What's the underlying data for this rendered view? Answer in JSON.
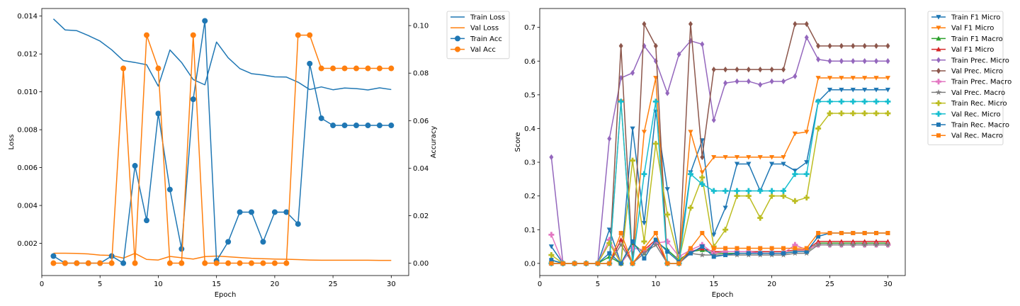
{
  "chart_data": [
    {
      "type": "line",
      "xlabel": "Epoch",
      "ylabel": "Loss",
      "y2label": "Accuracy",
      "xlim": [
        0,
        31.5
      ],
      "ylim": [
        0.0003,
        0.0144
      ],
      "y2lim": [
        -0.0052,
        0.1072
      ],
      "xticks": [
        0,
        5,
        10,
        15,
        20,
        25,
        30
      ],
      "yticks": [
        0.002,
        0.004,
        0.006,
        0.008,
        0.01,
        0.012,
        0.014
      ],
      "y2ticks": [
        0.0,
        0.02,
        0.04,
        0.06,
        0.08,
        0.1
      ],
      "ytick_labels": [
        "0.002",
        "0.004",
        "0.006",
        "0.008",
        "0.010",
        "0.012",
        "0.014"
      ],
      "y2tick_labels": [
        "0.00",
        "0.02",
        "0.04",
        "0.06",
        "0.08",
        "0.10"
      ],
      "x": [
        1,
        2,
        3,
        4,
        5,
        6,
        7,
        8,
        9,
        10,
        11,
        12,
        13,
        14,
        15,
        16,
        17,
        18,
        19,
        20,
        21,
        22,
        23,
        24,
        25,
        26,
        27,
        28,
        29,
        30
      ],
      "series": [
        {
          "name": "Train Loss",
          "axis": "left",
          "color": "#1f77b4",
          "marker": "none",
          "values": [
            0.01385,
            0.01327,
            0.01323,
            0.01297,
            0.01268,
            0.01222,
            0.01165,
            0.01155,
            0.01143,
            0.0103,
            0.01221,
            0.01155,
            0.01065,
            0.01037,
            0.01263,
            0.0118,
            0.01123,
            0.01096,
            0.01089,
            0.01079,
            0.01078,
            0.01051,
            0.01012,
            0.01026,
            0.01011,
            0.0102,
            0.01017,
            0.0101,
            0.01021,
            0.01012
          ]
        },
        {
          "name": "Val Loss",
          "axis": "left",
          "color": "#ff7f0e",
          "marker": "none",
          "values": [
            0.00148,
            0.00148,
            0.00147,
            0.00144,
            0.00138,
            0.00136,
            0.00122,
            0.00147,
            0.00115,
            0.00112,
            0.00131,
            0.00124,
            0.00117,
            0.0013,
            0.00133,
            0.00129,
            0.00125,
            0.00121,
            0.00119,
            0.00117,
            0.00116,
            0.00114,
            0.00112,
            0.00111,
            0.00111,
            0.00111,
            0.00111,
            0.00111,
            0.0011,
            0.0011
          ]
        },
        {
          "name": "Train Acc",
          "axis": "right",
          "color": "#1f77b4",
          "marker": "circle",
          "values": [
            0.003,
            0.0,
            0.0,
            0.0,
            0.0,
            0.003,
            0.0,
            0.041,
            0.018,
            0.063,
            0.031,
            0.006,
            0.069,
            0.102,
            0.001,
            0.009,
            0.0215,
            0.0215,
            0.009,
            0.0215,
            0.0215,
            0.0165,
            0.084,
            0.061,
            0.058,
            0.058,
            0.058,
            0.058,
            0.058,
            0.058
          ]
        },
        {
          "name": "Val Acc",
          "axis": "right",
          "color": "#ff7f0e",
          "marker": "circle",
          "values": [
            0.0,
            0.0,
            0.0,
            0.0,
            0.0,
            0.0,
            0.082,
            0.0,
            0.096,
            0.082,
            0.0,
            0.0,
            0.096,
            0.0,
            0.0,
            0.0,
            0.0,
            0.0,
            0.0,
            0.0,
            0.0,
            0.096,
            0.096,
            0.082,
            0.082,
            0.082,
            0.082,
            0.082,
            0.082,
            0.082
          ]
        }
      ],
      "legend": "outside-top-right"
    },
    {
      "type": "line",
      "xlabel": "Epoch",
      "ylabel": "Score",
      "xlim": [
        0,
        31.5
      ],
      "ylim": [
        -0.036,
        0.756
      ],
      "xticks": [
        0,
        5,
        10,
        15,
        20,
        25,
        30
      ],
      "yticks": [
        0.0,
        0.1,
        0.2,
        0.3,
        0.4,
        0.5,
        0.6,
        0.7
      ],
      "ytick_labels": [
        "0.0",
        "0.1",
        "0.2",
        "0.3",
        "0.4",
        "0.5",
        "0.6",
        "0.7"
      ],
      "x": [
        1,
        2,
        3,
        4,
        5,
        6,
        7,
        8,
        9,
        10,
        11,
        12,
        13,
        14,
        15,
        16,
        17,
        18,
        19,
        20,
        21,
        22,
        23,
        24,
        25,
        26,
        27,
        28,
        29,
        30
      ],
      "series": [
        {
          "name": "Train F1 Micro",
          "color": "#1f77b4",
          "marker": "tri-down",
          "values": [
            0.05,
            0.0,
            0.0,
            0.0,
            0.0,
            0.1,
            0.0,
            0.4,
            0.12,
            0.45,
            0.22,
            0.02,
            0.27,
            0.365,
            0.085,
            0.165,
            0.295,
            0.295,
            0.215,
            0.295,
            0.295,
            0.275,
            0.3,
            0.48,
            0.515,
            0.515,
            0.515,
            0.515,
            0.515,
            0.515
          ]
        },
        {
          "name": "Val F1 Micro",
          "color": "#ff7f0e",
          "marker": "tri-down",
          "values": [
            0.0,
            0.0,
            0.0,
            0.0,
            0.0,
            0.0,
            0.48,
            0.0,
            0.39,
            0.55,
            0.0,
            0.0,
            0.39,
            0.27,
            0.315,
            0.315,
            0.315,
            0.315,
            0.315,
            0.315,
            0.315,
            0.385,
            0.39,
            0.55,
            0.55,
            0.55,
            0.55,
            0.55,
            0.55,
            0.55
          ]
        },
        {
          "name": "Train F1 Macro",
          "color": "#2ca02c",
          "marker": "tri-up",
          "values": [
            0.01,
            0.0,
            0.0,
            0.0,
            0.0,
            0.02,
            0.0,
            0.06,
            0.03,
            0.065,
            0.04,
            0.01,
            0.035,
            0.04,
            0.03,
            0.03,
            0.03,
            0.03,
            0.03,
            0.03,
            0.03,
            0.035,
            0.035,
            0.06,
            0.06,
            0.06,
            0.06,
            0.06,
            0.06,
            0.06
          ]
        },
        {
          "name": "Val F1 Micro",
          "color": "#d62728",
          "marker": "tri-up",
          "values": [
            0.0,
            0.0,
            0.0,
            0.0,
            0.0,
            0.0,
            0.07,
            0.0,
            0.04,
            0.07,
            0.0,
            0.0,
            0.035,
            0.045,
            0.035,
            0.035,
            0.035,
            0.035,
            0.035,
            0.035,
            0.035,
            0.04,
            0.04,
            0.065,
            0.065,
            0.065,
            0.065,
            0.065,
            0.065,
            0.065
          ]
        },
        {
          "name": "Train Prec. Micro",
          "color": "#9467bd",
          "marker": "diamond",
          "values": [
            0.315,
            0.0,
            0.0,
            0.0,
            0.0,
            0.37,
            0.55,
            0.565,
            0.645,
            0.6,
            0.505,
            0.62,
            0.66,
            0.65,
            0.425,
            0.535,
            0.54,
            0.54,
            0.53,
            0.54,
            0.54,
            0.555,
            0.67,
            0.605,
            0.6,
            0.6,
            0.6,
            0.6,
            0.6,
            0.6
          ]
        },
        {
          "name": "Val Prec. Micro",
          "color": "#8c564b",
          "marker": "diamond",
          "values": [
            0.0,
            0.0,
            0.0,
            0.0,
            0.0,
            0.0,
            0.645,
            0.0,
            0.71,
            0.645,
            0.0,
            0.0,
            0.71,
            0.315,
            0.575,
            0.575,
            0.575,
            0.575,
            0.575,
            0.575,
            0.575,
            0.71,
            0.71,
            0.645,
            0.645,
            0.645,
            0.645,
            0.645,
            0.645,
            0.645
          ]
        },
        {
          "name": "Train Prec. Macro",
          "color": "#e377c2",
          "marker": "plus",
          "values": [
            0.085,
            0.0,
            0.0,
            0.0,
            0.0,
            0.07,
            0.0,
            0.045,
            0.04,
            0.06,
            0.065,
            0.02,
            0.04,
            0.055,
            0.03,
            0.035,
            0.035,
            0.035,
            0.03,
            0.03,
            0.03,
            0.055,
            0.04,
            0.055,
            0.055,
            0.055,
            0.055,
            0.055,
            0.055,
            0.055
          ]
        },
        {
          "name": "Val Prec. Macro",
          "color": "#7f7f7f",
          "marker": "star",
          "values": [
            0.0,
            0.0,
            0.0,
            0.0,
            0.0,
            0.0,
            0.055,
            0.0,
            0.03,
            0.055,
            0.0,
            0.0,
            0.03,
            0.025,
            0.025,
            0.025,
            0.025,
            0.025,
            0.025,
            0.025,
            0.025,
            0.03,
            0.03,
            0.055,
            0.055,
            0.055,
            0.055,
            0.055,
            0.055,
            0.055
          ]
        },
        {
          "name": "Train Rec. Micro",
          "color": "#bcbd22",
          "marker": "plus",
          "values": [
            0.025,
            0.0,
            0.0,
            0.0,
            0.0,
            0.06,
            0.0,
            0.305,
            0.065,
            0.355,
            0.145,
            0.01,
            0.165,
            0.255,
            0.05,
            0.1,
            0.2,
            0.2,
            0.135,
            0.2,
            0.2,
            0.185,
            0.195,
            0.4,
            0.445,
            0.445,
            0.445,
            0.445,
            0.445,
            0.445
          ]
        },
        {
          "name": "Val Rec. Micro",
          "color": "#17becf",
          "marker": "plus",
          "values": [
            0.0,
            0.0,
            0.0,
            0.0,
            0.0,
            0.0,
            0.48,
            0.0,
            0.265,
            0.48,
            0.0,
            0.0,
            0.265,
            0.235,
            0.215,
            0.215,
            0.215,
            0.215,
            0.215,
            0.215,
            0.215,
            0.265,
            0.265,
            0.48,
            0.48,
            0.48,
            0.48,
            0.48,
            0.48,
            0.48
          ]
        },
        {
          "name": "Train Rec. Macro",
          "color": "#1f77b4",
          "marker": "square",
          "values": [
            0.01,
            0.0,
            0.0,
            0.0,
            0.0,
            0.03,
            0.0,
            0.065,
            0.015,
            0.07,
            0.035,
            0.005,
            0.03,
            0.05,
            0.02,
            0.025,
            0.03,
            0.03,
            0.03,
            0.03,
            0.03,
            0.035,
            0.035,
            0.08,
            0.09,
            0.09,
            0.09,
            0.09,
            0.09,
            0.09
          ]
        },
        {
          "name": "Val Rec. Macro",
          "color": "#ff7f0e",
          "marker": "square",
          "values": [
            0.0,
            0.0,
            0.0,
            0.0,
            0.0,
            0.0,
            0.09,
            0.0,
            0.045,
            0.09,
            0.0,
            0.0,
            0.045,
            0.09,
            0.045,
            0.045,
            0.045,
            0.045,
            0.045,
            0.045,
            0.045,
            0.045,
            0.045,
            0.09,
            0.09,
            0.09,
            0.09,
            0.09,
            0.09,
            0.09
          ]
        }
      ],
      "legend": "outside-top-right"
    }
  ]
}
